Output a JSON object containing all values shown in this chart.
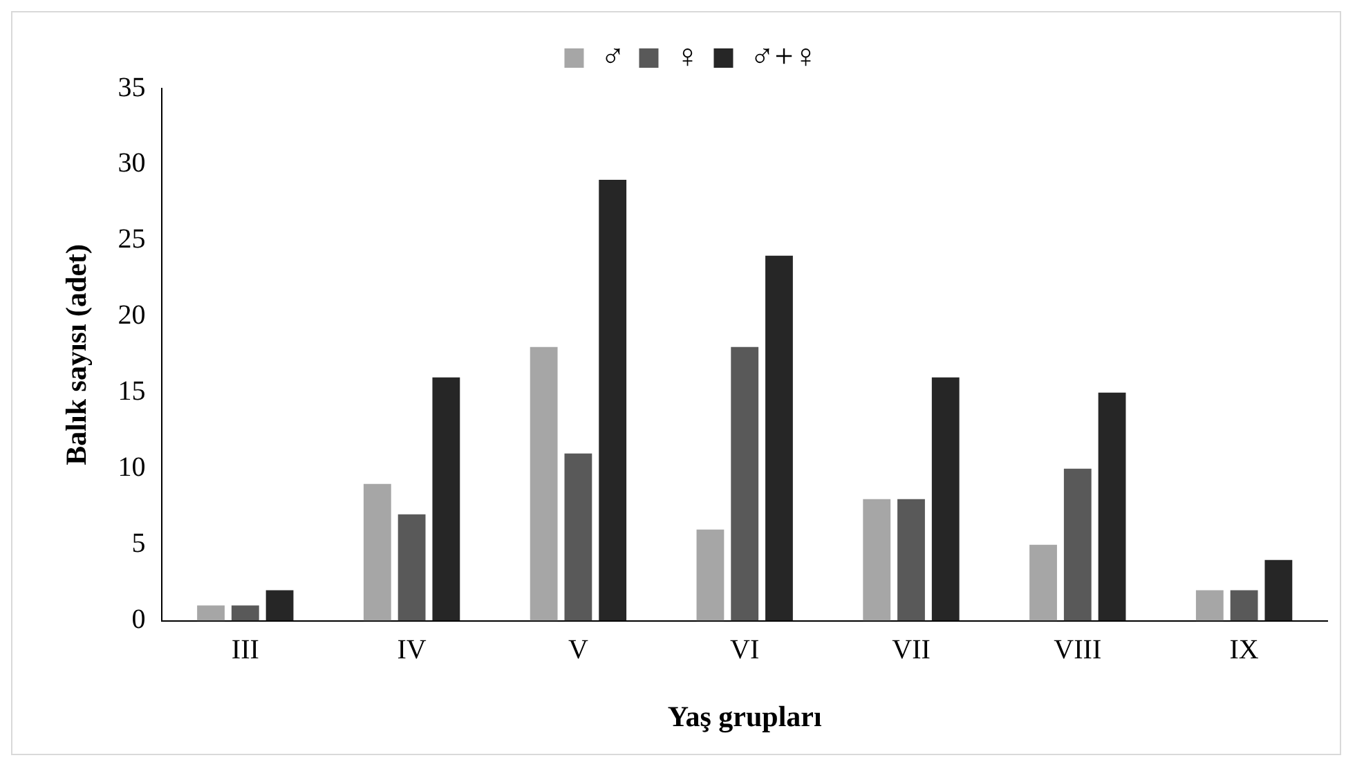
{
  "chart_data": {
    "type": "bar",
    "xlabel": "Yaş grupları",
    "ylabel": "Balık sayısı (adet)",
    "categories": [
      "III",
      "IV",
      "V",
      "VI",
      "VII",
      "VIII",
      "IX"
    ],
    "series": [
      {
        "name": "♂",
        "color": "#a6a6a6",
        "values": [
          1,
          9,
          18,
          6,
          8,
          5,
          2
        ]
      },
      {
        "name": "♀",
        "color": "#595959",
        "values": [
          1,
          7,
          11,
          18,
          8,
          10,
          2
        ]
      },
      {
        "name": "♂+♀",
        "color": "#262626",
        "values": [
          2,
          16,
          29,
          24,
          16,
          15,
          4
        ]
      }
    ],
    "ylim": [
      0,
      35
    ],
    "yticks": [
      0,
      5,
      10,
      15,
      20,
      25,
      30,
      35
    ],
    "grid": false,
    "legend": "top"
  }
}
